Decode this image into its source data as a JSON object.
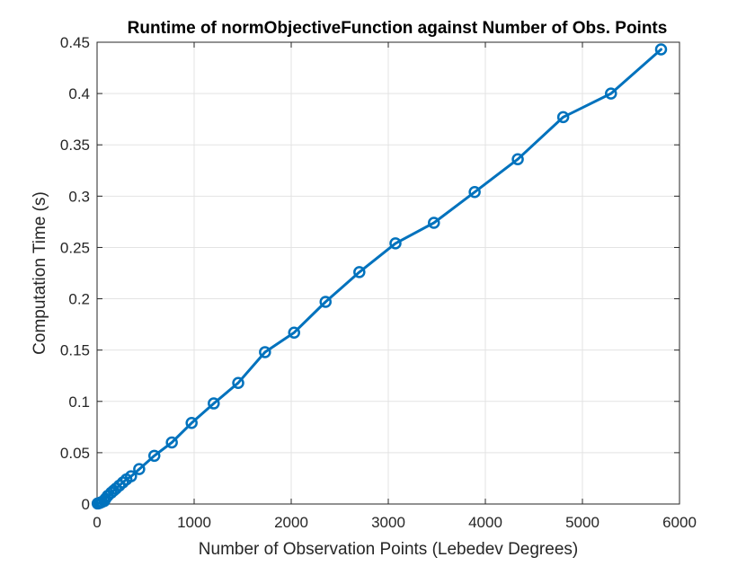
{
  "chart_data": {
    "type": "line",
    "title": "Runtime of normObjectiveFunction against Number of Obs. Points",
    "xlabel": "Number of Observation Points (Lebedev Degrees)",
    "ylabel": "Computation Time (s)",
    "xlim": [
      0,
      6000
    ],
    "ylim": [
      0,
      0.45
    ],
    "xticks": [
      0,
      1000,
      2000,
      3000,
      4000,
      5000,
      6000
    ],
    "xtick_labels": [
      "0",
      "1000",
      "2000",
      "3000",
      "4000",
      "5000",
      "6000"
    ],
    "yticks": [
      0,
      0.05,
      0.1,
      0.15,
      0.2,
      0.25,
      0.3,
      0.35,
      0.4,
      0.45
    ],
    "ytick_labels": [
      "0",
      "0.05",
      "0.1",
      "0.15",
      "0.2",
      "0.25",
      "0.3",
      "0.35",
      "0.4",
      "0.45"
    ],
    "grid": true,
    "series": [
      {
        "color": "#0072BD",
        "marker": "circle",
        "x": [
          6,
          14,
          26,
          38,
          50,
          74,
          86,
          110,
          146,
          170,
          194,
          230,
          266,
          302,
          350,
          434,
          590,
          770,
          974,
          1202,
          1454,
          1730,
          2030,
          2354,
          2702,
          3074,
          3470,
          3890,
          4334,
          4802,
          5294,
          5810
        ],
        "y": [
          0.0005,
          0.0007,
          0.001,
          0.0015,
          0.002,
          0.003,
          0.005,
          0.008,
          0.011,
          0.013,
          0.015,
          0.018,
          0.021,
          0.024,
          0.027,
          0.034,
          0.047,
          0.06,
          0.079,
          0.098,
          0.118,
          0.148,
          0.167,
          0.197,
          0.226,
          0.254,
          0.274,
          0.304,
          0.336,
          0.377,
          0.4,
          0.443
        ]
      }
    ]
  }
}
